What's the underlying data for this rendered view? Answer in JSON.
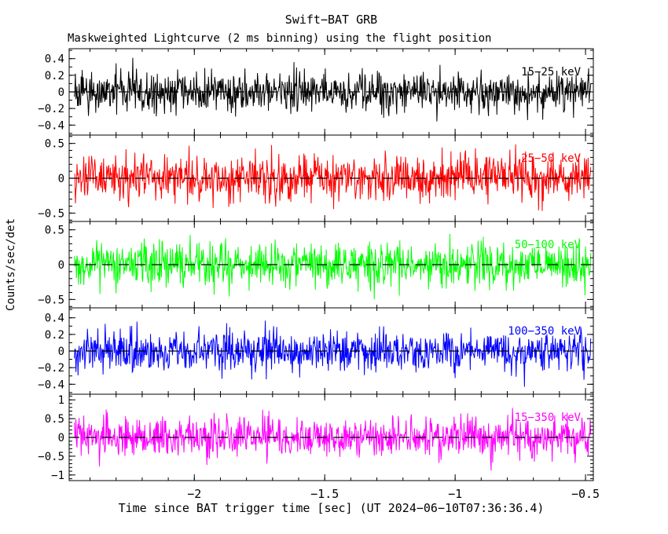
{
  "title": "Swift−BAT GRB",
  "subtitle": "Maskweighted Lightcurve (2 ms binning) using the flight position",
  "axes": {
    "ylabel": "Counts/sec/det",
    "xlabel": "Time since BAT trigger time [sec] (UT 2024−06−10T07:36:36.4)"
  },
  "chart_data": {
    "type": "line",
    "title": "Swift−BAT GRB",
    "subtitle": "Maskweighted Lightcurve (2 ms binning) using the flight position",
    "xlabel": "Time since BAT trigger time [sec] (UT 2024−06−10T07:36:36.4)",
    "ylabel": "Counts/sec/det",
    "grid": false,
    "legend_position": "inside-top-right-per-panel",
    "zero_line": {
      "style": "dashed",
      "color": "#000000"
    },
    "bin_seconds": 0.002,
    "x_axis": {
      "range": [
        -2.48,
        -0.47
      ],
      "major_ticks": [
        -2,
        -1.5,
        -1,
        -0.5
      ],
      "tick_labels": [
        "−2",
        "−1.5",
        "−1",
        "−0.5"
      ],
      "minor_step": 0.1,
      "data_start": -2.46,
      "data_end": -0.48
    },
    "panels": [
      {
        "band": "15−25 keV",
        "color": "#000000",
        "ylim": [
          -0.52,
          0.52
        ],
        "major_ticks": [
          0.4,
          0.2,
          0,
          -0.2,
          -0.4
        ],
        "tick_labels": [
          "0.4",
          "0.2",
          "0",
          "−0.2",
          "−0.4"
        ],
        "minor_step": 0.1,
        "mean": 0,
        "noise_sigma": 0.12,
        "seed": 20240610
      },
      {
        "band": "25−50 keV",
        "color": "#ff0000",
        "ylim": [
          -0.62,
          0.62
        ],
        "major_ticks": [
          0.5,
          0,
          -0.5
        ],
        "tick_labels": [
          "0.5",
          "0",
          "−0.5"
        ],
        "minor_step": 0.1,
        "mean": 0,
        "noise_sigma": 0.16,
        "seed": 20240611
      },
      {
        "band": "50−100 keV",
        "color": "#00ff00",
        "ylim": [
          -0.62,
          0.62
        ],
        "major_ticks": [
          0.5,
          0,
          -0.5
        ],
        "tick_labels": [
          "0.5",
          "0",
          "−0.5"
        ],
        "minor_step": 0.1,
        "mean": 0,
        "noise_sigma": 0.16,
        "seed": 20240612
      },
      {
        "band": "100−350 keV",
        "color": "#0000ff",
        "ylim": [
          -0.52,
          0.52
        ],
        "major_ticks": [
          0.4,
          0.2,
          0,
          -0.2,
          -0.4
        ],
        "tick_labels": [
          "0.4",
          "0.2",
          "0",
          "−0.2",
          "−0.4"
        ],
        "minor_step": 0.1,
        "mean": 0,
        "noise_sigma": 0.12,
        "seed": 20240613
      },
      {
        "band": "15−350 keV",
        "color": "#ff00ff",
        "ylim": [
          -1.15,
          1.15
        ],
        "major_ticks": [
          1,
          0.5,
          0,
          -0.5,
          -1
        ],
        "tick_labels": [
          "1",
          "0.5",
          "0",
          "−0.5",
          "−1"
        ],
        "minor_step": 0.1,
        "mean": 0,
        "noise_sigma": 0.27,
        "seed": 20240614
      }
    ]
  }
}
